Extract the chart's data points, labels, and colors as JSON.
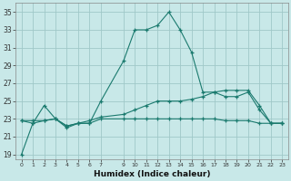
{
  "xlabel": "Humidex (Indice chaleur)",
  "background_color": "#c8e8e8",
  "line_color": "#1a7a6e",
  "grid_color": "#a0c8c8",
  "xlim": [
    -0.5,
    23.5
  ],
  "ylim": [
    18.5,
    36
  ],
  "yticks": [
    19,
    21,
    23,
    25,
    27,
    29,
    31,
    33,
    35
  ],
  "xticks": [
    0,
    1,
    2,
    3,
    4,
    5,
    6,
    7,
    9,
    10,
    11,
    12,
    13,
    14,
    15,
    16,
    17,
    18,
    19,
    20,
    21,
    22,
    23
  ],
  "series": [
    {
      "x": [
        0,
        1,
        2,
        3,
        4,
        5,
        6,
        7,
        9,
        10,
        11,
        12,
        13,
        14,
        15,
        16,
        17,
        18,
        19,
        20,
        21,
        22,
        23
      ],
      "y": [
        19,
        22.5,
        24.5,
        23,
        22,
        22.5,
        22.5,
        25,
        29.5,
        33,
        33,
        33.5,
        35,
        33,
        30.5,
        26,
        26,
        25.5,
        25.5,
        26,
        24,
        22.5,
        22.5
      ]
    },
    {
      "x": [
        0,
        1,
        2,
        3,
        4,
        5,
        6,
        7,
        9,
        10,
        11,
        12,
        13,
        14,
        15,
        16,
        17,
        18,
        19,
        20,
        21,
        22,
        23
      ],
      "y": [
        22.8,
        22.8,
        22.8,
        23,
        22.2,
        22.5,
        22.8,
        23.2,
        23.5,
        24,
        24.5,
        25,
        25,
        25,
        25.2,
        25.5,
        26,
        26.2,
        26.2,
        26.2,
        24.5,
        22.5,
        22.5
      ]
    },
    {
      "x": [
        0,
        1,
        2,
        3,
        4,
        5,
        6,
        7,
        9,
        10,
        11,
        12,
        13,
        14,
        15,
        16,
        17,
        18,
        19,
        20,
        21,
        22,
        23
      ],
      "y": [
        22.8,
        22.5,
        22.8,
        23,
        22.2,
        22.5,
        22.5,
        23,
        23,
        23,
        23,
        23,
        23,
        23,
        23,
        23,
        23,
        22.8,
        22.8,
        22.8,
        22.5,
        22.5,
        22.5
      ]
    }
  ]
}
